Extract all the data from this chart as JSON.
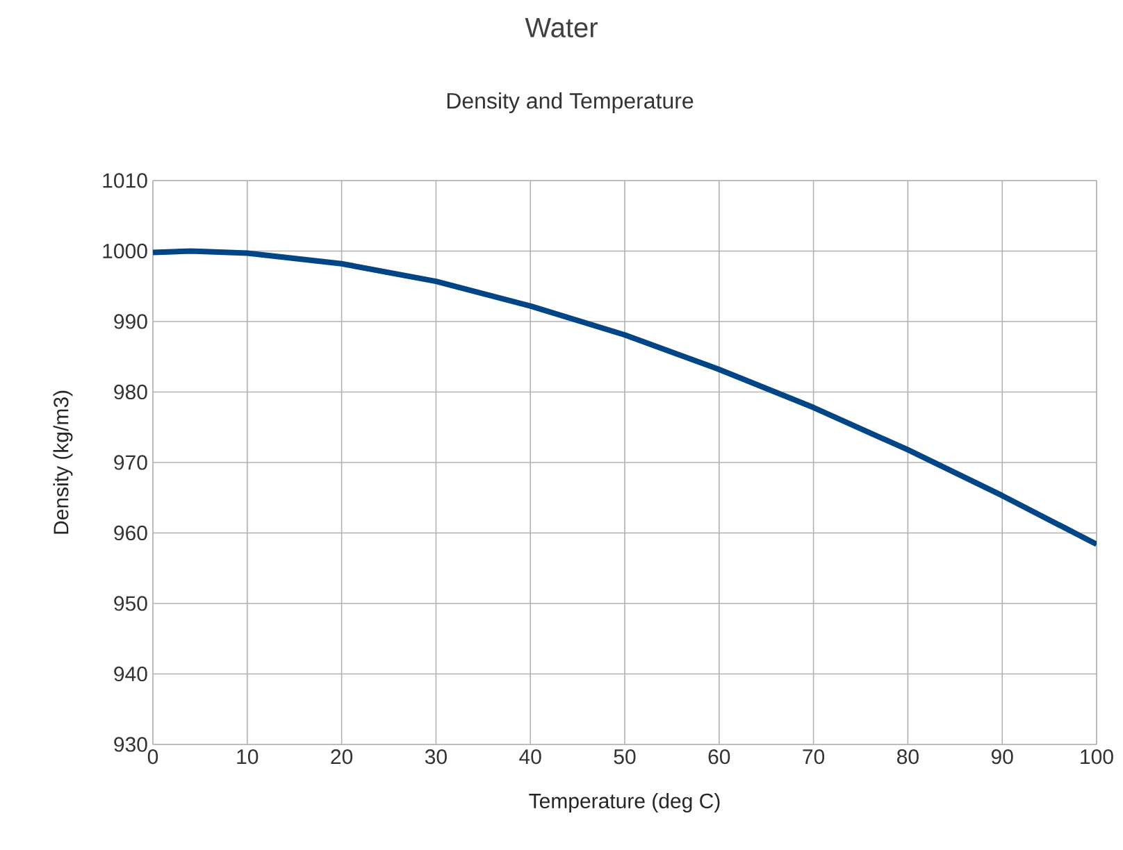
{
  "chart_data": {
    "type": "line",
    "title": "Water",
    "subtitle": "Density and Temperature",
    "xlabel": "Temperature (deg C)",
    "ylabel": "Density (kg/m3)",
    "x": [
      0,
      4,
      10,
      20,
      30,
      40,
      50,
      60,
      70,
      80,
      90,
      100
    ],
    "series": [
      {
        "color": "#004586",
        "values": [
          999.8,
          1000.0,
          999.7,
          998.2,
          995.7,
          992.2,
          988.1,
          983.2,
          977.8,
          971.8,
          965.3,
          958.4
        ]
      }
    ],
    "xlim": [
      0,
      100
    ],
    "xticks": [
      0,
      10,
      20,
      30,
      40,
      50,
      60,
      70,
      80,
      90,
      100
    ],
    "ylim": [
      930,
      1010
    ],
    "yticks": [
      930,
      940,
      950,
      960,
      970,
      980,
      990,
      1000,
      1010
    ],
    "grid": true,
    "marker": "none",
    "line_style": "solid"
  }
}
